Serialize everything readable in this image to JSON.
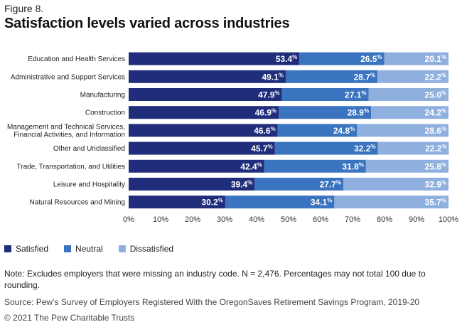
{
  "figure_label": "Figure 8.",
  "title": "Satisfaction levels varied across industries",
  "colors": {
    "satisfied": "#1f2d7a",
    "neutral": "#3a73bf",
    "dissatisfied": "#8fb0de"
  },
  "legend": [
    "Satisfied",
    "Neutral",
    "Dissatisfied"
  ],
  "chart_data": {
    "type": "bar",
    "orientation": "horizontal",
    "stacked": true,
    "categories": [
      "Education and Health Services",
      "Administrative and Support Services",
      "Manufacturing",
      "Construction",
      "Management and Technical Services, Financial Activities, and Information",
      "Other and Unclassified",
      "Trade, Transportation, and Utilities",
      "Leisure and Hospitality",
      "Natural Resources and Mining"
    ],
    "category_label_lines": [
      [
        "Education and Health Services"
      ],
      [
        "Administrative and Support Services"
      ],
      [
        "Manufacturing"
      ],
      [
        "Construction"
      ],
      [
        "Management and Technical Services,",
        "Financial Activities, and Information"
      ],
      [
        "Other and Unclassified"
      ],
      [
        "Trade, Transportation, and Utilities"
      ],
      [
        "Leisure and Hospitality"
      ],
      [
        "Natural Resources and Mining"
      ]
    ],
    "series": [
      {
        "name": "Satisfied",
        "values": [
          53.4,
          49.1,
          47.9,
          46.9,
          46.6,
          45.7,
          42.4,
          39.4,
          30.2
        ]
      },
      {
        "name": "Neutral",
        "values": [
          26.5,
          28.7,
          27.1,
          28.9,
          24.8,
          32.2,
          31.8,
          27.7,
          34.1
        ]
      },
      {
        "name": "Dissatisfied",
        "values": [
          20.1,
          22.2,
          25.0,
          24.2,
          28.6,
          22.2,
          25.8,
          32.9,
          35.7
        ]
      }
    ],
    "xlim": [
      0,
      100
    ],
    "x_ticks": [
      "0%",
      "10%",
      "20%",
      "30%",
      "40%",
      "50%",
      "60%",
      "70%",
      "80%",
      "90%",
      "100%"
    ],
    "value_suffix": "%",
    "legend_position": "bottom-left"
  },
  "note": "Note: Excludes employers that were missing an industry code. N = 2,476. Percentages may not total 100 due to rounding.",
  "source": "Source: Pew’s Survey of Employers Registered With the OregonSaves Retirement Savings Program, 2019-20",
  "copyright": "© 2021 The Pew Charitable Trusts"
}
